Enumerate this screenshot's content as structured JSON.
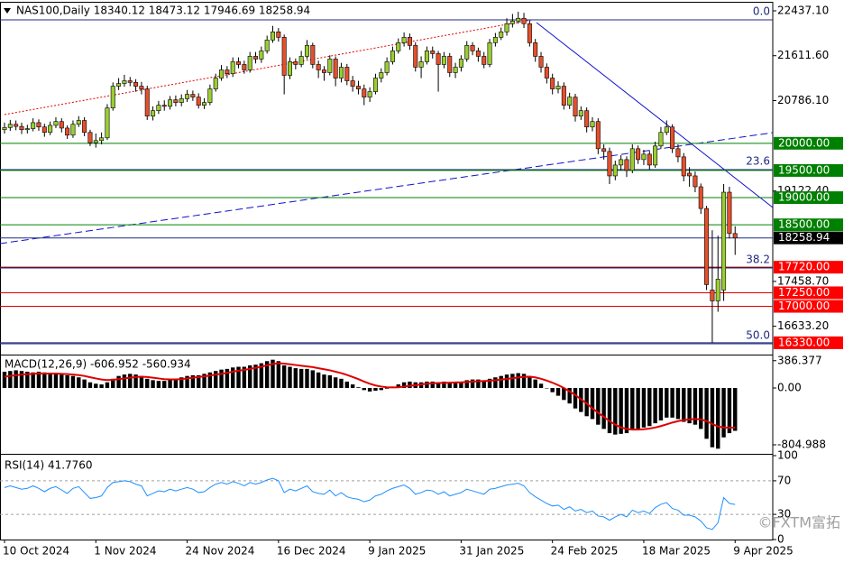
{
  "chart_data": [
    {
      "type": "candlestick",
      "title": "NAS100,Daily  18340.12 18473.12 17946.69 18258.94",
      "ylim": [
        16129.1,
        22586.5
      ],
      "yticks": [
        {
          "value": 22437.1,
          "label": "22437.10"
        },
        {
          "value": 21611.6,
          "label": "21611.60"
        },
        {
          "value": 20786.1,
          "label": "20786.10"
        },
        {
          "value": 19122.4,
          "label": "19122.40"
        },
        {
          "value": 17458.7,
          "label": "17458.70"
        },
        {
          "value": 16633.2,
          "label": "16633.20"
        }
      ],
      "up_color": "#9acd32",
      "down_color": "#e4502c",
      "candles": {
        "open": [
          20250,
          20290,
          20350,
          20310,
          20250,
          20270,
          20380,
          20300,
          20200,
          20330,
          20400,
          20280,
          20150,
          20350,
          20420,
          20200,
          20010,
          20050,
          20100,
          20650,
          21050,
          21100,
          21150,
          21120,
          21050,
          21000,
          20500,
          20600,
          20700,
          20680,
          20800,
          20750,
          20820,
          20900,
          20850,
          20700,
          20750,
          21000,
          21200,
          21350,
          21280,
          21500,
          21450,
          21350,
          21600,
          21550,
          21700,
          21900,
          22050,
          21950,
          21250,
          21500,
          21450,
          21600,
          21800,
          21450,
          21350,
          21300,
          21550,
          21200,
          21400,
          21150,
          21050,
          21000,
          20850,
          20950,
          21200,
          21300,
          21500,
          21700,
          21850,
          21950,
          21800,
          21400,
          21500,
          21700,
          21650,
          21450,
          21600,
          21300,
          21400,
          21550,
          21800,
          21700,
          21600,
          21450,
          21850,
          21950,
          22050,
          22200,
          22250,
          22300,
          22200,
          21850,
          21600,
          21400,
          21200,
          21000,
          21050,
          20700,
          20850,
          20500,
          20600,
          20300,
          20400,
          19900,
          19850,
          19400,
          19600,
          19700,
          19500,
          19900,
          19700,
          19800,
          19600,
          19950,
          20200,
          20300,
          19900,
          19750,
          19450,
          19400,
          19200,
          18800,
          17300,
          17100,
          17300,
          19100,
          18340.12
        ],
        "high": [
          20380,
          20430,
          20420,
          20380,
          20340,
          20460,
          20440,
          20360,
          20400,
          20480,
          20460,
          20330,
          20420,
          20500,
          20480,
          20250,
          20180,
          20200,
          20720,
          21120,
          21200,
          21260,
          21220,
          21180,
          21130,
          21060,
          20680,
          20780,
          20790,
          20870,
          20880,
          20900,
          20980,
          20970,
          20920,
          20830,
          21080,
          21280,
          21440,
          21420,
          21580,
          21580,
          21520,
          21680,
          21680,
          21780,
          21980,
          22160,
          22120,
          22000,
          21580,
          21560,
          21700,
          21900,
          21850,
          21520,
          21420,
          21620,
          21600,
          21480,
          21460,
          21240,
          21150,
          21080,
          21030,
          21280,
          21380,
          21580,
          21780,
          21930,
          22040,
          22020,
          21860,
          21600,
          21780,
          21780,
          21700,
          21680,
          21660,
          21480,
          21620,
          21880,
          21860,
          21760,
          21680,
          21920,
          22030,
          22130,
          22300,
          22380,
          22420,
          22400,
          22260,
          21920,
          21680,
          21470,
          21280,
          21140,
          21120,
          20930,
          20910,
          20680,
          20660,
          20480,
          20460,
          19980,
          19920,
          19680,
          19780,
          19760,
          19980,
          19960,
          19880,
          19860,
          20030,
          20300,
          20420,
          20350,
          19980,
          19820,
          19560,
          19480,
          19260,
          18850,
          18400,
          18300,
          19250,
          19200,
          18473.12
        ],
        "low": [
          20180,
          20230,
          20240,
          20170,
          20180,
          20220,
          20230,
          20120,
          20150,
          20280,
          20200,
          20080,
          20100,
          20300,
          20130,
          19950,
          19920,
          19980,
          20060,
          20600,
          20980,
          21040,
          21050,
          20950,
          20900,
          20430,
          20420,
          20540,
          20600,
          20620,
          20680,
          20680,
          20760,
          20780,
          20640,
          20630,
          20700,
          20950,
          21150,
          21200,
          21220,
          21380,
          21280,
          21300,
          21470,
          21480,
          21650,
          21850,
          21870,
          20900,
          21180,
          21360,
          21400,
          21550,
          21380,
          21200,
          21150,
          21250,
          21050,
          21120,
          21070,
          20950,
          20900,
          20700,
          20760,
          20900,
          21120,
          21250,
          21450,
          21650,
          21780,
          21720,
          21320,
          21200,
          21450,
          21560,
          20950,
          21380,
          21220,
          21200,
          21320,
          21500,
          21620,
          21500,
          21380,
          21400,
          21780,
          21900,
          21980,
          22130,
          22200,
          22120,
          21780,
          21500,
          21300,
          21100,
          20900,
          20920,
          20620,
          20630,
          20400,
          20430,
          20200,
          20220,
          19800,
          19700,
          19250,
          19320,
          19500,
          19380,
          19450,
          19620,
          19600,
          19520,
          19550,
          19900,
          20150,
          19820,
          19650,
          19300,
          19200,
          19100,
          18700,
          17300,
          16330,
          16900,
          17100,
          18250,
          17946.69
        ],
        "close": [
          20290,
          20350,
          20310,
          20250,
          20270,
          20380,
          20300,
          20200,
          20330,
          20400,
          20280,
          20150,
          20350,
          20420,
          20200,
          20010,
          20050,
          20100,
          20650,
          21050,
          21100,
          21150,
          21120,
          21050,
          21000,
          20500,
          20600,
          20700,
          20680,
          20800,
          20750,
          20820,
          20900,
          20850,
          20700,
          20750,
          21000,
          21200,
          21350,
          21280,
          21500,
          21450,
          21350,
          21600,
          21550,
          21700,
          21900,
          22050,
          21950,
          21250,
          21500,
          21450,
          21600,
          21800,
          21450,
          21350,
          21300,
          21550,
          21200,
          21400,
          21150,
          21050,
          21000,
          20850,
          20950,
          21200,
          21300,
          21500,
          21700,
          21850,
          21950,
          21800,
          21400,
          21500,
          21700,
          21650,
          21450,
          21600,
          21300,
          21400,
          21550,
          21800,
          21700,
          21600,
          21450,
          21850,
          21950,
          22050,
          22200,
          22250,
          22300,
          22200,
          21850,
          21600,
          21400,
          21200,
          21000,
          21050,
          20700,
          20850,
          20500,
          20600,
          20300,
          20400,
          19900,
          19850,
          19400,
          19600,
          19700,
          19500,
          19900,
          19700,
          19800,
          19600,
          19950,
          20200,
          20300,
          19900,
          19750,
          19400,
          19400,
          19200,
          18800,
          17400,
          17100,
          17500,
          19100,
          18340,
          18258.94
        ]
      },
      "levels": [
        {
          "value": 20000,
          "label": "20000.00",
          "color": "#008000",
          "box_color": "#008000"
        },
        {
          "value": 19500,
          "label": "19500.00",
          "color": "#008000",
          "box_color": "#008000"
        },
        {
          "value": 19000,
          "label": "19000.00",
          "color": "#008000",
          "box_color": "#008000"
        },
        {
          "value": 18500,
          "label": "18500.00",
          "color": "#008000",
          "box_color": "#008000"
        },
        {
          "value": 18258.94,
          "label": "18258.94",
          "color": "#1f2a80",
          "box_color": "#000000"
        },
        {
          "value": 17720,
          "label": "17720.00",
          "color": "#8b0000",
          "box_color": "#ff0000"
        },
        {
          "value": 17250,
          "label": "17250.00",
          "color": "#e00000",
          "box_color": "#ff0000"
        },
        {
          "value": 17000,
          "label": "17000.00",
          "color": "#e00000",
          "box_color": "#ff0000"
        },
        {
          "value": 16330,
          "label": "16330.00",
          "color": "#1f2a80",
          "box_color": "#ff0000"
        }
      ],
      "fib_color": "#1f2a80",
      "fib_levels": [
        {
          "value": 22271,
          "label": "0.0"
        },
        {
          "value": 19515,
          "label": "23.6"
        },
        {
          "value": 17706,
          "label": "38.2"
        },
        {
          "value": 16312,
          "label": "50.0"
        }
      ]
    },
    {
      "type": "macd",
      "title": "MACD(12,26,9) -606.952 -560.934",
      "ylim": [
        -920.1,
        447.2
      ],
      "yticks": [
        386.377,
        {
          "value": 0,
          "label": "0.00"
        },
        -804.988
      ],
      "histogram": {
        "color": "#000000",
        "values": [
          230,
          240,
          250,
          240,
          230,
          220,
          230,
          220,
          210,
          200,
          190,
          180,
          170,
          150,
          120,
          80,
          60,
          50,
          80,
          130,
          170,
          190,
          200,
          190,
          170,
          130,
          110,
          100,
          100,
          120,
          130,
          150,
          170,
          180,
          180,
          200,
          220,
          240,
          260,
          270,
          290,
          300,
          300,
          320,
          330,
          350,
          380,
          400,
          380,
          320,
          300,
          280,
          270,
          270,
          250,
          220,
          190,
          180,
          150,
          130,
          90,
          50,
          10,
          -30,
          -50,
          -40,
          -30,
          -10,
          20,
          50,
          80,
          90,
          80,
          80,
          90,
          90,
          80,
          90,
          80,
          80,
          90,
          110,
          120,
          120,
          110,
          130,
          150,
          170,
          190,
          200,
          210,
          200,
          170,
          120,
          60,
          0,
          -60,
          -110,
          -170,
          -220,
          -290,
          -340,
          -400,
          -440,
          -520,
          -580,
          -640,
          -660,
          -650,
          -640,
          -600,
          -580,
          -560,
          -540,
          -500,
          -460,
          -420,
          -420,
          -440,
          -480,
          -500,
          -520,
          -580,
          -720,
          -840,
          -860,
          -700,
          -640,
          -606.952
        ]
      },
      "signal": {
        "color": "#e00000",
        "values": [
          160,
          170,
          180,
          190,
          195,
          200,
          205,
          205,
          205,
          204,
          200,
          196,
          190,
          182,
          170,
          152,
          135,
          120,
          112,
          115,
          125,
          135,
          145,
          155,
          160,
          155,
          145,
          135,
          125,
          122,
          122,
          125,
          135,
          145,
          155,
          165,
          175,
          190,
          200,
          215,
          230,
          245,
          255,
          270,
          285,
          300,
          320,
          340,
          350,
          345,
          335,
          325,
          315,
          305,
          295,
          280,
          265,
          250,
          230,
          210,
          185,
          155,
          125,
          90,
          60,
          35,
          20,
          10,
          8,
          10,
          20,
          30,
          40,
          50,
          60,
          65,
          70,
          72,
          75,
          78,
          80,
          85,
          90,
          95,
          98,
          102,
          110,
          118,
          128,
          138,
          148,
          158,
          160,
          150,
          130,
          105,
          75,
          40,
          0,
          -50,
          -100,
          -160,
          -220,
          -290,
          -350,
          -410,
          -470,
          -520,
          -560,
          -580,
          -590,
          -590,
          -585,
          -575,
          -560,
          -540,
          -515,
          -490,
          -470,
          -455,
          -445,
          -440,
          -445,
          -470,
          -510,
          -545,
          -560,
          -562,
          -560.934
        ]
      }
    },
    {
      "type": "line",
      "title": "RSI(14) 41.7760",
      "ylim": [
        0,
        100
      ],
      "yticks": [
        100,
        70,
        30,
        0
      ],
      "color": "#1e90ff",
      "values": [
        62,
        64,
        62,
        60,
        61,
        64,
        61,
        57,
        61,
        63,
        59,
        55,
        61,
        63,
        56,
        49,
        50,
        52,
        62,
        68,
        69,
        70,
        69,
        66,
        64,
        52,
        55,
        58,
        57,
        60,
        58,
        60,
        62,
        60,
        56,
        57,
        62,
        66,
        68,
        66,
        69,
        67,
        64,
        68,
        66,
        68,
        71,
        73,
        70,
        56,
        60,
        58,
        61,
        64,
        57,
        55,
        54,
        59,
        52,
        56,
        51,
        49,
        48,
        45,
        47,
        52,
        54,
        58,
        61,
        63,
        65,
        61,
        54,
        56,
        59,
        58,
        54,
        57,
        52,
        54,
        56,
        60,
        58,
        56,
        54,
        60,
        61,
        63,
        65,
        66,
        67,
        64,
        56,
        51,
        47,
        43,
        40,
        41,
        36,
        39,
        34,
        36,
        32,
        34,
        28,
        27,
        23,
        27,
        30,
        27,
        35,
        32,
        34,
        31,
        38,
        42,
        44,
        37,
        35,
        29,
        29,
        27,
        22,
        14,
        12,
        20,
        50,
        43,
        41.776
      ],
      "categories": [
        "10 Oct 2024",
        null,
        null,
        null,
        null,
        null,
        null,
        null,
        null,
        null,
        null,
        null,
        null,
        null,
        null,
        null,
        "1 Nov 2024",
        null,
        null,
        null,
        null,
        null,
        null,
        null,
        null,
        null,
        null,
        null,
        null,
        null,
        null,
        null,
        "24 Nov 2024",
        null,
        null,
        null,
        null,
        null,
        null,
        null,
        null,
        null,
        null,
        null,
        null,
        null,
        null,
        null,
        "16 Dec 2024",
        null,
        null,
        null,
        null,
        null,
        null,
        null,
        null,
        null,
        null,
        null,
        null,
        null,
        null,
        null,
        "9 Jan 2025",
        null,
        null,
        null,
        null,
        null,
        null,
        null,
        null,
        null,
        null,
        null,
        null,
        null,
        null,
        null,
        "31 Jan 2025",
        null,
        null,
        null,
        null,
        null,
        null,
        null,
        null,
        null,
        null,
        null,
        null,
        null,
        null,
        null,
        "24 Feb 2025",
        null,
        null,
        null,
        null,
        null,
        null,
        null,
        null,
        null,
        null,
        null,
        null,
        null,
        null,
        null,
        "18 Mar 2025",
        null,
        null,
        null,
        null,
        null,
        null,
        null,
        null,
        null,
        null,
        null,
        null,
        null,
        null,
        null,
        "9 Apr 2025"
      ],
      "watermark": "©FXTM富拓"
    }
  ]
}
